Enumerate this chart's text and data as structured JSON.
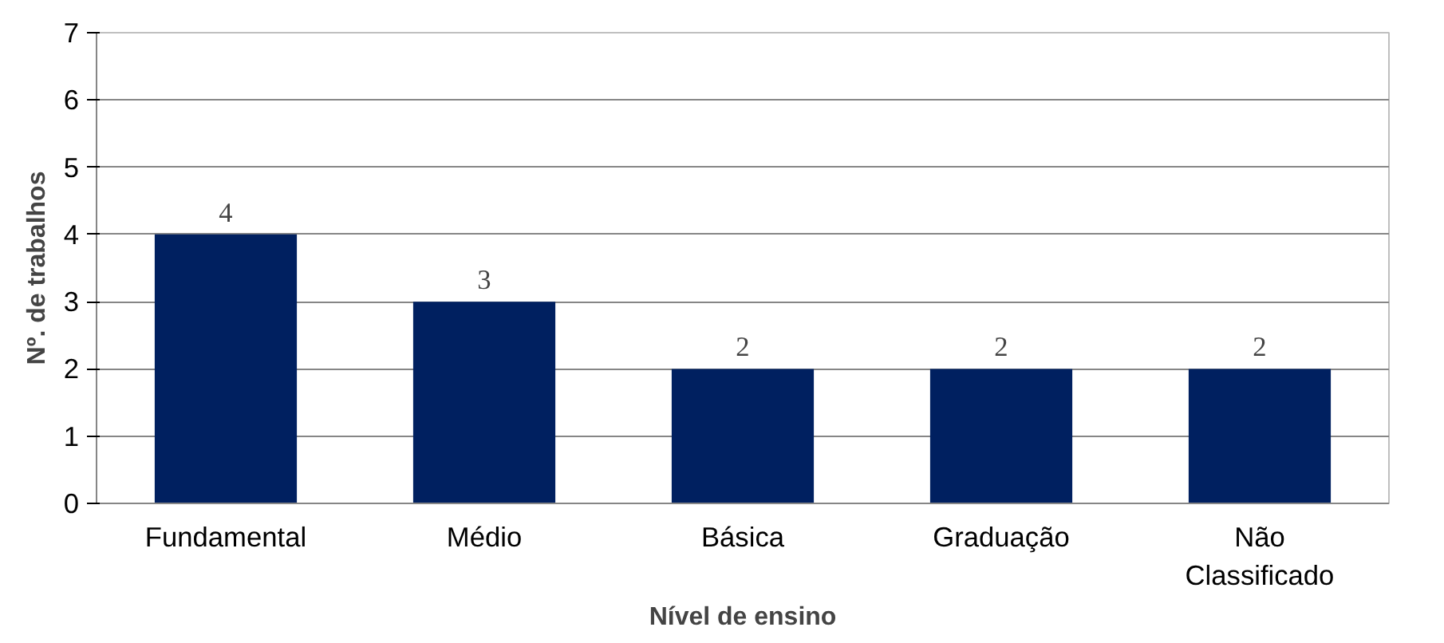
{
  "chart_data": {
    "type": "bar",
    "xlabel": "Nível de ensino",
    "ylabel": "Nº. de trabalhos",
    "categories": [
      "Fundamental",
      "Médio",
      "Básica",
      "Graduação",
      "Não Classificado"
    ],
    "values": [
      4,
      3,
      2,
      2,
      2
    ],
    "color": "#002060",
    "ylim": [
      0,
      7
    ],
    "yticks": [
      0,
      1,
      2,
      3,
      4,
      5,
      6,
      7
    ],
    "grid": "y",
    "data_labels": true
  }
}
